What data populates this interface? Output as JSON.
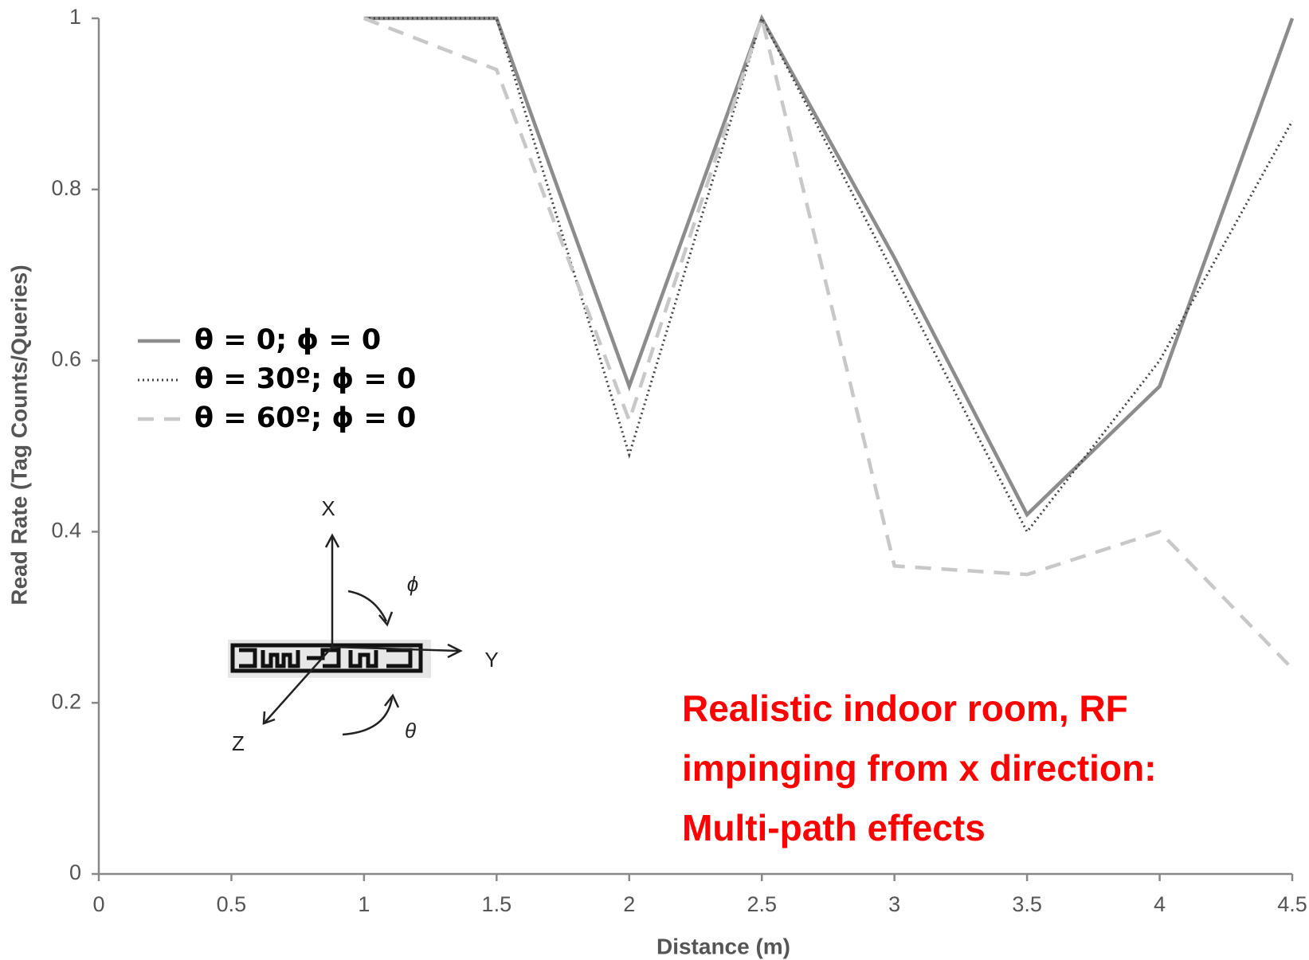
{
  "chart_data": {
    "type": "line",
    "x_label": "Distance (m)",
    "y_label": "Read Rate (Tag Counts/Queries)",
    "x": [
      1,
      1.5,
      2,
      2.5,
      3,
      3.5,
      4,
      4.5
    ],
    "series": [
      {
        "name": "θ = 0; ϕ = 0",
        "color": "#8c8c8c",
        "style": "solid",
        "values": [
          1,
          1,
          0.57,
          1,
          0.72,
          0.42,
          0.57,
          1
        ]
      },
      {
        "name": "θ = 30º; ϕ = 0",
        "color": "#444444",
        "style": "dotted",
        "values": [
          1,
          1,
          0.49,
          1,
          0.7,
          0.4,
          0.6,
          0.88
        ]
      },
      {
        "name": "θ = 60º; ϕ = 0",
        "color": "#c8c8c8",
        "style": "dashed",
        "values": [
          1,
          0.94,
          0.53,
          1,
          0.36,
          0.35,
          0.4,
          0.24
        ]
      }
    ],
    "xlim": [
      0,
      4.5
    ],
    "xticks": [
      0,
      0.5,
      1,
      1.5,
      2,
      2.5,
      3,
      3.5,
      4,
      4.5
    ],
    "ylim": [
      0,
      1
    ],
    "yticks": [
      0,
      0.2,
      0.4,
      0.6,
      0.8,
      1
    ],
    "grid": false,
    "legend": "left",
    "annotation": [
      "Realistic indoor room, RF",
      "impinging from x direction:",
      "Multi-path effects"
    ],
    "inset_labels": [
      "X",
      "Y",
      "Z",
      "ϕ",
      "θ"
    ]
  }
}
